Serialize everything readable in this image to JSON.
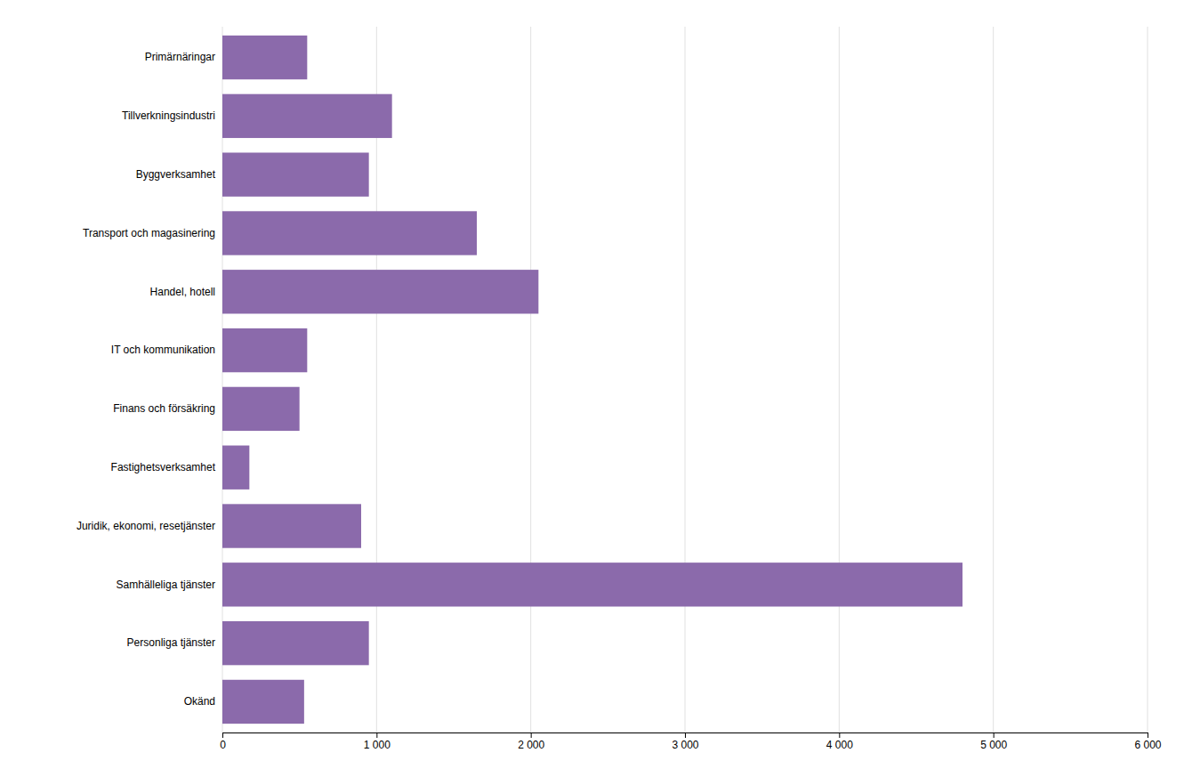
{
  "chart_data": {
    "type": "bar",
    "orientation": "horizontal",
    "categories": [
      "Okänd",
      "Personliga tjänster",
      "Samhälleliga tjänster",
      "Juridik, ekonomi, resetjänster",
      "Fastighetsverksamhet",
      "Finans och försäkring",
      "IT och kommunikation",
      "Handel, hotell",
      "Transport och magasinering",
      "Byggverksamhet",
      "Tillverkningsindustri",
      "Primärnäringar"
    ],
    "values": [
      530,
      950,
      4800,
      900,
      175,
      500,
      550,
      2050,
      1650,
      950,
      1100,
      550
    ],
    "color": "#8b6aab",
    "xlim": [
      0,
      6000
    ],
    "xticks": [
      0,
      {
        "value": 1000,
        "label": "1 000"
      },
      {
        "value": 2000,
        "label": "2 000"
      },
      {
        "value": 3000,
        "label": "3 000"
      },
      {
        "value": 4000,
        "label": "4 000"
      },
      {
        "value": 5000,
        "label": "5 000"
      },
      {
        "value": 6000,
        "label": "6 000"
      }
    ],
    "grid": true
  }
}
